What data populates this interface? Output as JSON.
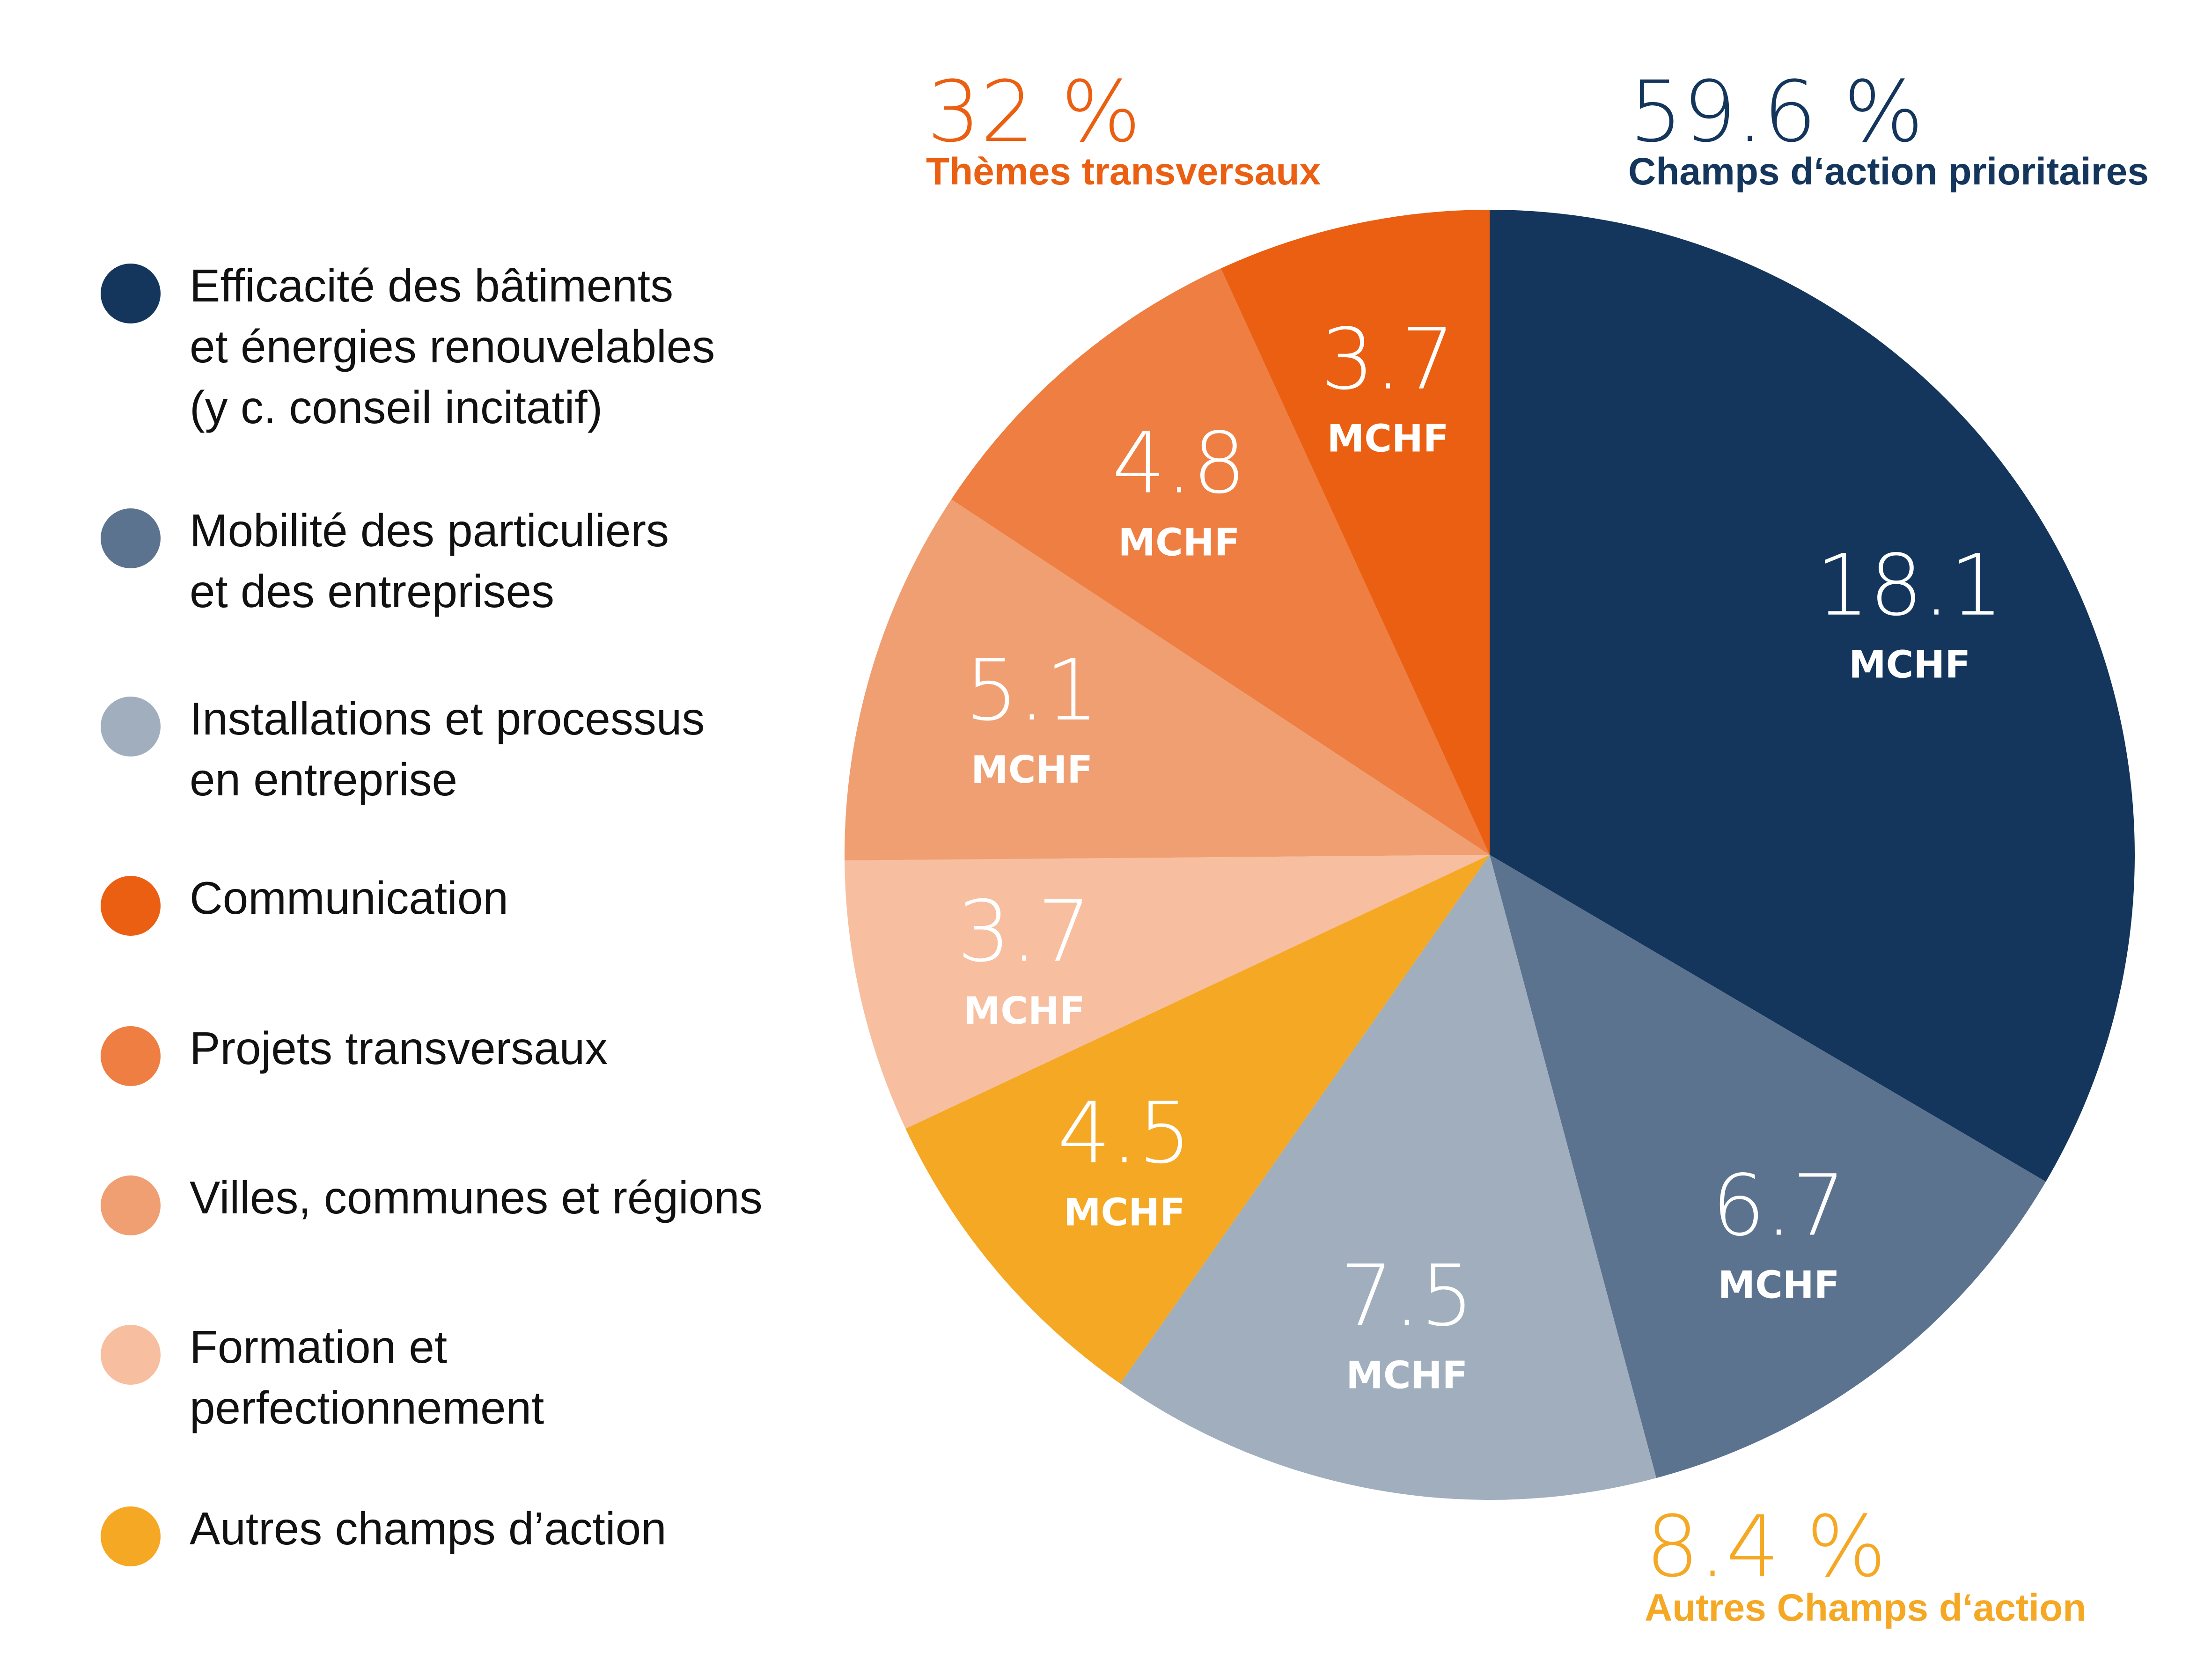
{
  "chart_data": {
    "type": "pie",
    "unit_label": "MCHF",
    "start_angle_deg": 0,
    "direction": "clockwise",
    "slices": [
      {
        "category": "Efficacité des bâtiments et énergies renouvelables (y c. conseil incitatif)",
        "value": 18.1,
        "label": "18.1",
        "color": "#14365d",
        "group": "prioritaires"
      },
      {
        "category": "Mobilité des particuliers et des entreprises",
        "value": 6.7,
        "label": "6.7",
        "color": "#5c738f",
        "group": "prioritaires"
      },
      {
        "category": "Installations et processus en entreprise",
        "value": 7.5,
        "label": "7.5",
        "color": "#a0aebe",
        "group": "prioritaires"
      },
      {
        "category": "Autres champs d’action",
        "value": 4.5,
        "label": "4.5",
        "color": "#f4a823",
        "group": "autres"
      },
      {
        "category": "Formation et perfectionnement",
        "value": 3.7,
        "label": "3.7",
        "color": "#f7bea0",
        "group": "transversaux"
      },
      {
        "category": "Villes, communes et régions",
        "value": 5.1,
        "label": "5.1",
        "color": "#f09f72",
        "group": "transversaux"
      },
      {
        "category": "Projets transversaux",
        "value": 4.8,
        "label": "4.8",
        "color": "#ee7e41",
        "group": "transversaux"
      },
      {
        "category": "Communication",
        "value": 3.7,
        "label": "3.7",
        "color": "#ea5f11",
        "group": "transversaux"
      }
    ],
    "groups": [
      {
        "key": "transversaux",
        "percent": "32 %",
        "label": "Thèmes transversaux",
        "color": "#ea5f11"
      },
      {
        "key": "prioritaires",
        "percent": "59.6 %",
        "label": "Champs d‘action prioritaires",
        "color": "#14365d"
      },
      {
        "key": "autres",
        "percent": "8.4 %",
        "label": "Autres Champs d‘action",
        "color": "#f4a823"
      }
    ],
    "legend": [
      {
        "label": "Efficacité des bâtiments\net énergies renouvelables\n(y c. conseil incitatif)",
        "color": "#14365d"
      },
      {
        "label": "Mobilité des particuliers\net des entreprises",
        "color": "#5c738f"
      },
      {
        "label": "Installations et processus\nen entreprise",
        "color": "#a0aebe"
      },
      {
        "label": "Communication",
        "color": "#ea5f11"
      },
      {
        "label": "Projets transversaux",
        "color": "#ee7e41"
      },
      {
        "label": "Villes, communes et régions",
        "color": "#f09f72"
      },
      {
        "label": "Formation et\nperfectionnement",
        "color": "#f7bea0"
      },
      {
        "label": "Autres champs d’action",
        "color": "#f4a823"
      }
    ]
  }
}
